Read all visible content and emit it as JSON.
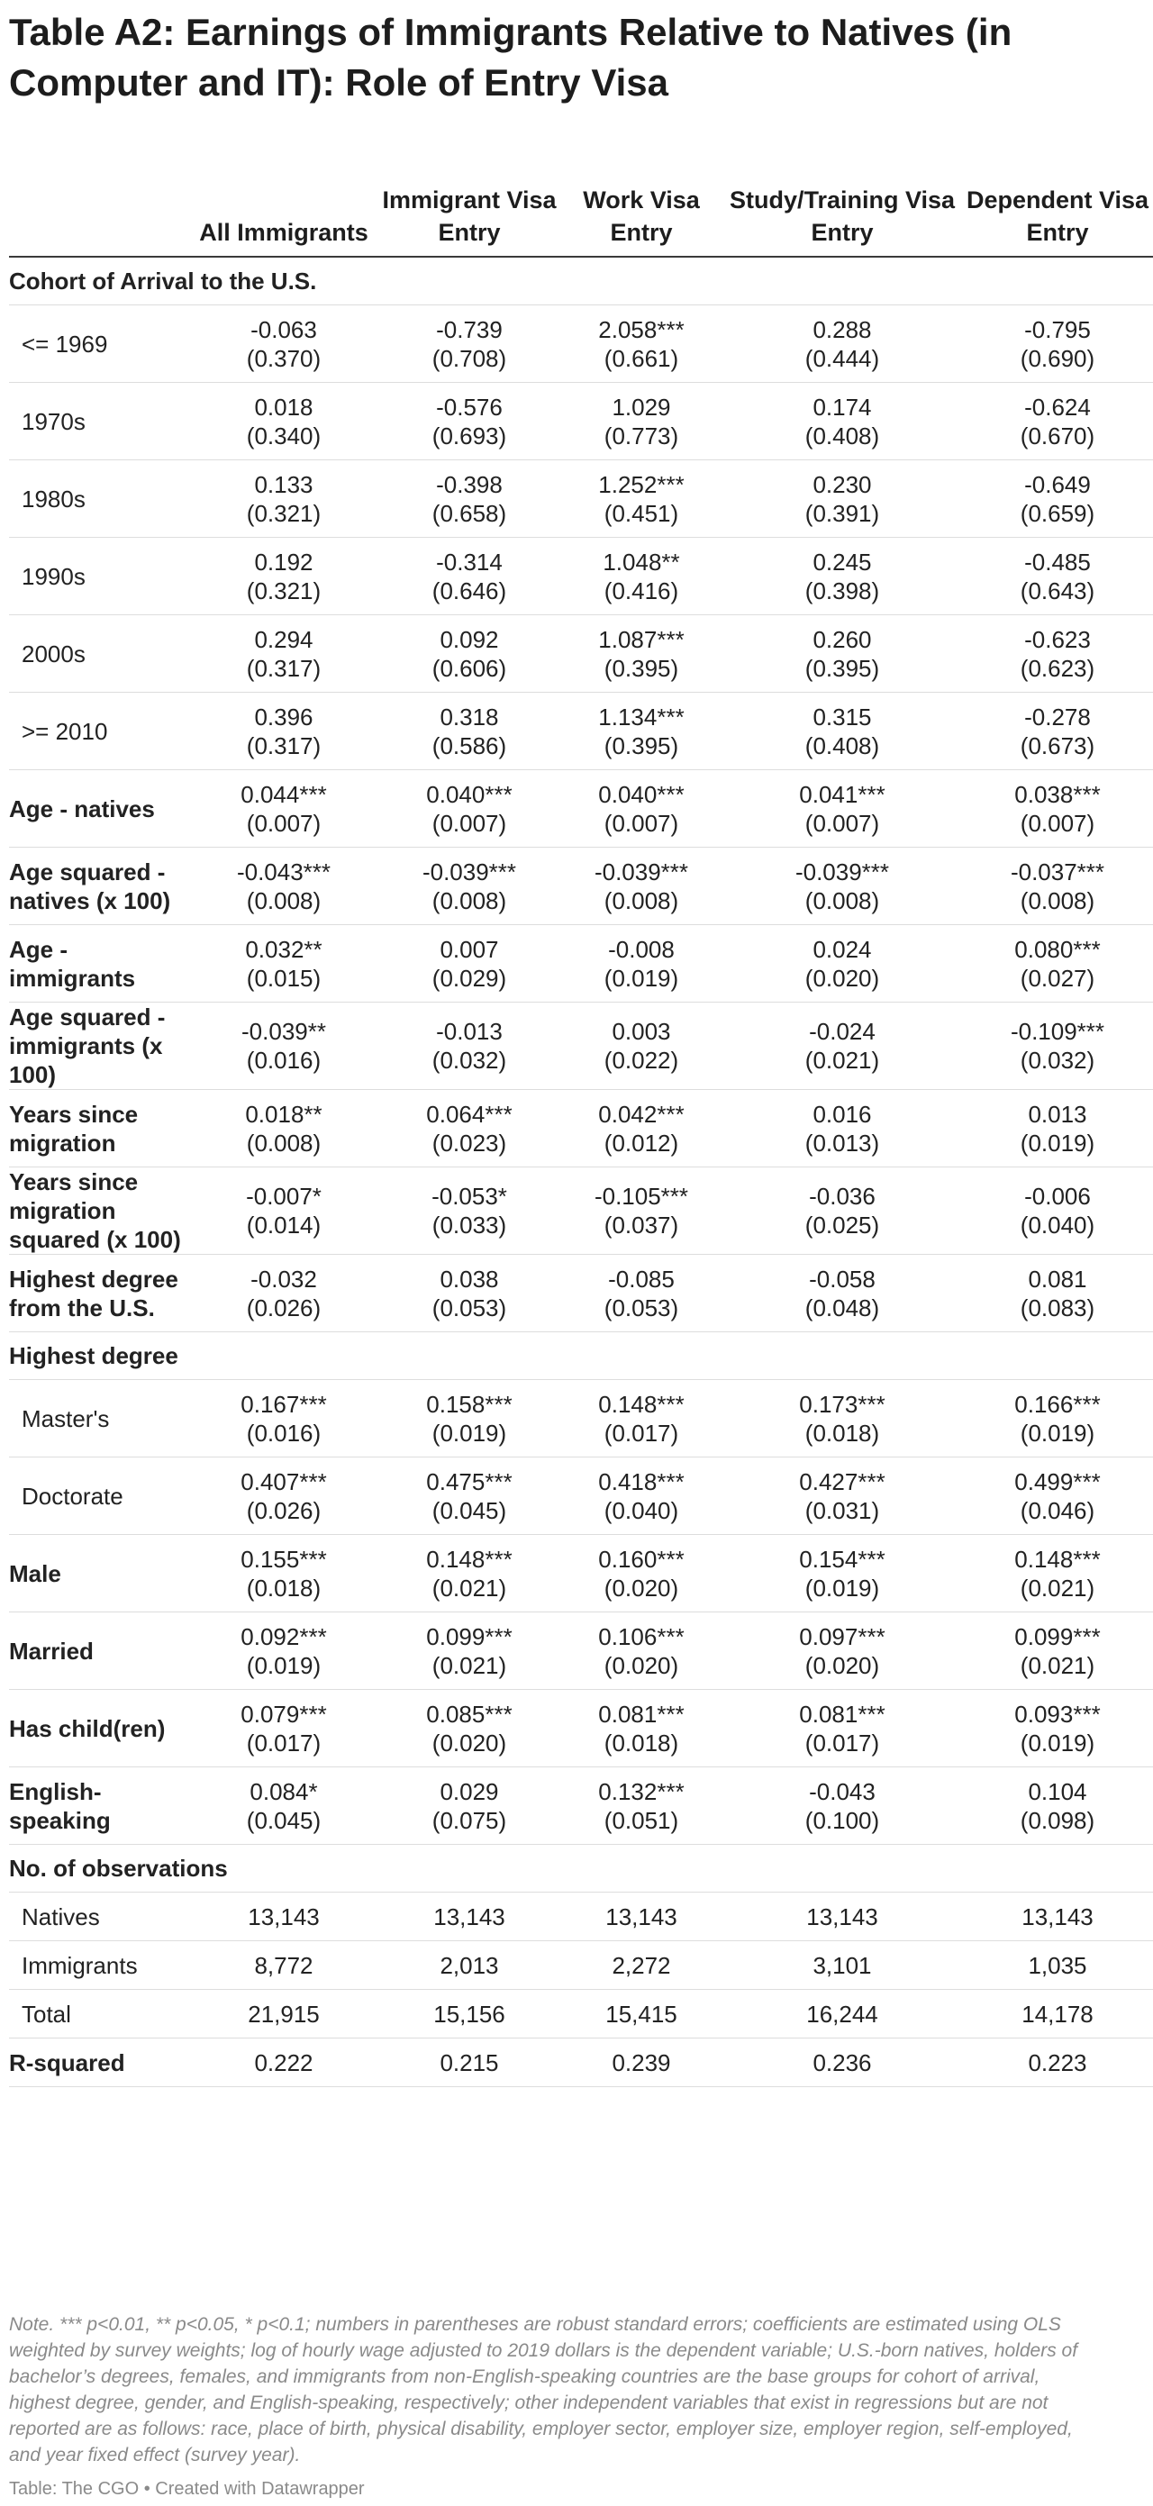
{
  "title": "Table A2: Earnings of Immigrants Relative to Natives (in Computer and IT): Role of Entry Visa",
  "columns": [
    "All Immigrants",
    "Immigrant Visa Entry",
    "Work Visa Entry",
    "Study/Training Visa Entry",
    "Dependent Visa Entry"
  ],
  "rows": [
    {
      "type": "group",
      "label": "Cohort of Arrival to the U.S."
    },
    {
      "type": "coef",
      "style": "indent",
      "label": "<= 1969",
      "v": [
        "-0.063",
        "-0.739",
        "2.058***",
        "0.288",
        "-0.795"
      ],
      "se": [
        "(0.370)",
        "(0.708)",
        "(0.661)",
        "(0.444)",
        "(0.690)"
      ]
    },
    {
      "type": "coef",
      "style": "indent",
      "label": "1970s",
      "v": [
        "0.018",
        "-0.576",
        "1.029",
        "0.174",
        "-0.624"
      ],
      "se": [
        "(0.340)",
        "(0.693)",
        "(0.773)",
        "(0.408)",
        "(0.670)"
      ]
    },
    {
      "type": "coef",
      "style": "indent",
      "label": "1980s",
      "v": [
        "0.133",
        "-0.398",
        "1.252***",
        "0.230",
        "-0.649"
      ],
      "se": [
        "(0.321)",
        "(0.658)",
        "(0.451)",
        "(0.391)",
        "(0.659)"
      ]
    },
    {
      "type": "coef",
      "style": "indent",
      "label": "1990s",
      "v": [
        "0.192",
        "-0.314",
        "1.048**",
        "0.245",
        "-0.485"
      ],
      "se": [
        "(0.321)",
        "(0.646)",
        "(0.416)",
        "(0.398)",
        "(0.643)"
      ]
    },
    {
      "type": "coef",
      "style": "indent",
      "label": "2000s",
      "v": [
        "0.294",
        "0.092",
        "1.087***",
        "0.260",
        "-0.623"
      ],
      "se": [
        "(0.317)",
        "(0.606)",
        "(0.395)",
        "(0.395)",
        "(0.623)"
      ]
    },
    {
      "type": "coef",
      "style": "indent",
      "label": ">= 2010",
      "v": [
        "0.396",
        "0.318",
        "1.134***",
        "0.315",
        "-0.278"
      ],
      "se": [
        "(0.317)",
        "(0.586)",
        "(0.395)",
        "(0.408)",
        "(0.673)"
      ]
    },
    {
      "type": "coef",
      "style": "bold",
      "label": "Age - natives",
      "v": [
        "0.044***",
        "0.040***",
        "0.040***",
        "0.041***",
        "0.038***"
      ],
      "se": [
        "(0.007)",
        "(0.007)",
        "(0.007)",
        "(0.007)",
        "(0.007)"
      ]
    },
    {
      "type": "coef",
      "style": "bold",
      "label": "Age squared - natives (x 100)",
      "v": [
        "-0.043***",
        "-0.039***",
        "-0.039***",
        "-0.039***",
        "-0.037***"
      ],
      "se": [
        "(0.008)",
        "(0.008)",
        "(0.008)",
        "(0.008)",
        "(0.008)"
      ]
    },
    {
      "type": "coef",
      "style": "bold",
      "label": "Age - immigrants",
      "v": [
        "0.032**",
        "0.007",
        "-0.008",
        "0.024",
        "0.080***"
      ],
      "se": [
        "(0.015)",
        "(0.029)",
        "(0.019)",
        "(0.020)",
        "(0.027)"
      ]
    },
    {
      "type": "coef",
      "style": "bold",
      "label": "Age squared - immigrants (x 100)",
      "v": [
        "-0.039**",
        "-0.013",
        "0.003",
        "-0.024",
        "-0.109***"
      ],
      "se": [
        "(0.016)",
        "(0.032)",
        "(0.022)",
        "(0.021)",
        "(0.032)"
      ]
    },
    {
      "type": "coef",
      "style": "bold",
      "label": "Years since migration",
      "v": [
        "0.018**",
        "0.064***",
        "0.042***",
        "0.016",
        "0.013"
      ],
      "se": [
        "(0.008)",
        "(0.023)",
        "(0.012)",
        "(0.013)",
        "(0.019)"
      ]
    },
    {
      "type": "coef",
      "style": "bold",
      "label": "Years since migration squared (x 100)",
      "v": [
        "-0.007*",
        "-0.053*",
        "-0.105***",
        "-0.036",
        "-0.006"
      ],
      "se": [
        "(0.014)",
        "(0.033)",
        "(0.037)",
        "(0.025)",
        "(0.040)"
      ]
    },
    {
      "type": "coef",
      "style": "bold",
      "label": "Highest degree from the U.S.",
      "v": [
        "-0.032",
        "0.038",
        "-0.085",
        "-0.058",
        "0.081"
      ],
      "se": [
        "(0.026)",
        "(0.053)",
        "(0.053)",
        "(0.048)",
        "(0.083)"
      ]
    },
    {
      "type": "group",
      "label": "Highest degree"
    },
    {
      "type": "coef",
      "style": "indent",
      "label": "Master's",
      "v": [
        "0.167***",
        "0.158***",
        "0.148***",
        "0.173***",
        "0.166***"
      ],
      "se": [
        "(0.016)",
        "(0.019)",
        "(0.017)",
        "(0.018)",
        "(0.019)"
      ]
    },
    {
      "type": "coef",
      "style": "indent",
      "label": "Doctorate",
      "v": [
        "0.407***",
        "0.475***",
        "0.418***",
        "0.427***",
        "0.499***"
      ],
      "se": [
        "(0.026)",
        "(0.045)",
        "(0.040)",
        "(0.031)",
        "(0.046)"
      ]
    },
    {
      "type": "coef",
      "style": "bold",
      "label": "Male",
      "v": [
        "0.155***",
        "0.148***",
        "0.160***",
        "0.154***",
        "0.148***"
      ],
      "se": [
        "(0.018)",
        "(0.021)",
        "(0.020)",
        "(0.019)",
        "(0.021)"
      ]
    },
    {
      "type": "coef",
      "style": "bold",
      "label": "Married",
      "v": [
        "0.092***",
        "0.099***",
        "0.106***",
        "0.097***",
        "0.099***"
      ],
      "se": [
        "(0.019)",
        "(0.021)",
        "(0.020)",
        "(0.020)",
        "(0.021)"
      ]
    },
    {
      "type": "coef",
      "style": "bold",
      "label": "Has child(ren)",
      "v": [
        "0.079***",
        "0.085***",
        "0.081***",
        "0.081***",
        "0.093***"
      ],
      "se": [
        "(0.017)",
        "(0.020)",
        "(0.018)",
        "(0.017)",
        "(0.019)"
      ]
    },
    {
      "type": "coef",
      "style": "bold",
      "label": "English-speaking",
      "v": [
        "0.084*",
        "0.029",
        "0.132***",
        "-0.043",
        "0.104"
      ],
      "se": [
        "(0.045)",
        "(0.075)",
        "(0.051)",
        "(0.100)",
        "(0.098)"
      ]
    },
    {
      "type": "group",
      "label": "No. of observations"
    },
    {
      "type": "single",
      "style": "indent",
      "label": "Natives",
      "v": [
        "13,143",
        "13,143",
        "13,143",
        "13,143",
        "13,143"
      ]
    },
    {
      "type": "single",
      "style": "indent",
      "label": "Immigrants",
      "v": [
        "8,772",
        "2,013",
        "2,272",
        "3,101",
        "1,035"
      ]
    },
    {
      "type": "single",
      "style": "indent",
      "label": "Total",
      "v": [
        "21,915",
        "15,156",
        "15,415",
        "16,244",
        "14,178"
      ]
    },
    {
      "type": "single",
      "style": "bold",
      "label": "R-squared",
      "v": [
        "0.222",
        "0.215",
        "0.239",
        "0.236",
        "0.223"
      ]
    }
  ],
  "note": "Note. *** p<0.01, ** p<0.05, * p<0.1; numbers in parentheses are robust standard errors; coefficients are estimated using OLS weighted by survey weights; log of hourly wage adjusted to 2019 dollars is the dependent variable; U.S.-born natives, holders of bachelor’s degrees, females, and immigrants from non-English-speaking countries are the base groups for cohort of arrival, highest degree, gender, and English-speaking, respectively; other independent variables that exist in regressions but are not reported are as follows: race, place of birth, physical disability, employer sector, employer size, employer region, self-employed, and year fixed effect (survey year).",
  "credit": "Table: The CGO • Created with Datawrapper"
}
